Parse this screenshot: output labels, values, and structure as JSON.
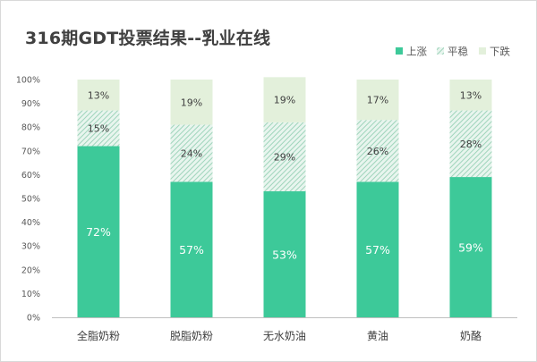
{
  "chart_data": {
    "type": "bar",
    "stacked": true,
    "title": "316期GDT投票结果--乳业在线",
    "categories": [
      "全脂奶粉",
      "脱脂奶粉",
      "无水奶油",
      "黄油",
      "奶酪"
    ],
    "series": [
      {
        "name": "上涨",
        "values": [
          72,
          57,
          53,
          57,
          59
        ],
        "color": "#3dc999",
        "pattern": "solid"
      },
      {
        "name": "平稳",
        "values": [
          15,
          24,
          29,
          26,
          28
        ],
        "color": "#a9ddc8",
        "pattern": "hatch"
      },
      {
        "name": "下跌",
        "values": [
          13,
          19,
          19,
          17,
          13
        ],
        "color": "#e3f0db",
        "pattern": "solid"
      }
    ],
    "ylim": [
      0,
      100
    ],
    "yticks": [
      "0%",
      "10%",
      "20%",
      "30%",
      "40%",
      "50%",
      "60%",
      "70%",
      "80%",
      "90%",
      "100%"
    ],
    "grid": false,
    "legend_position": "top-right"
  }
}
